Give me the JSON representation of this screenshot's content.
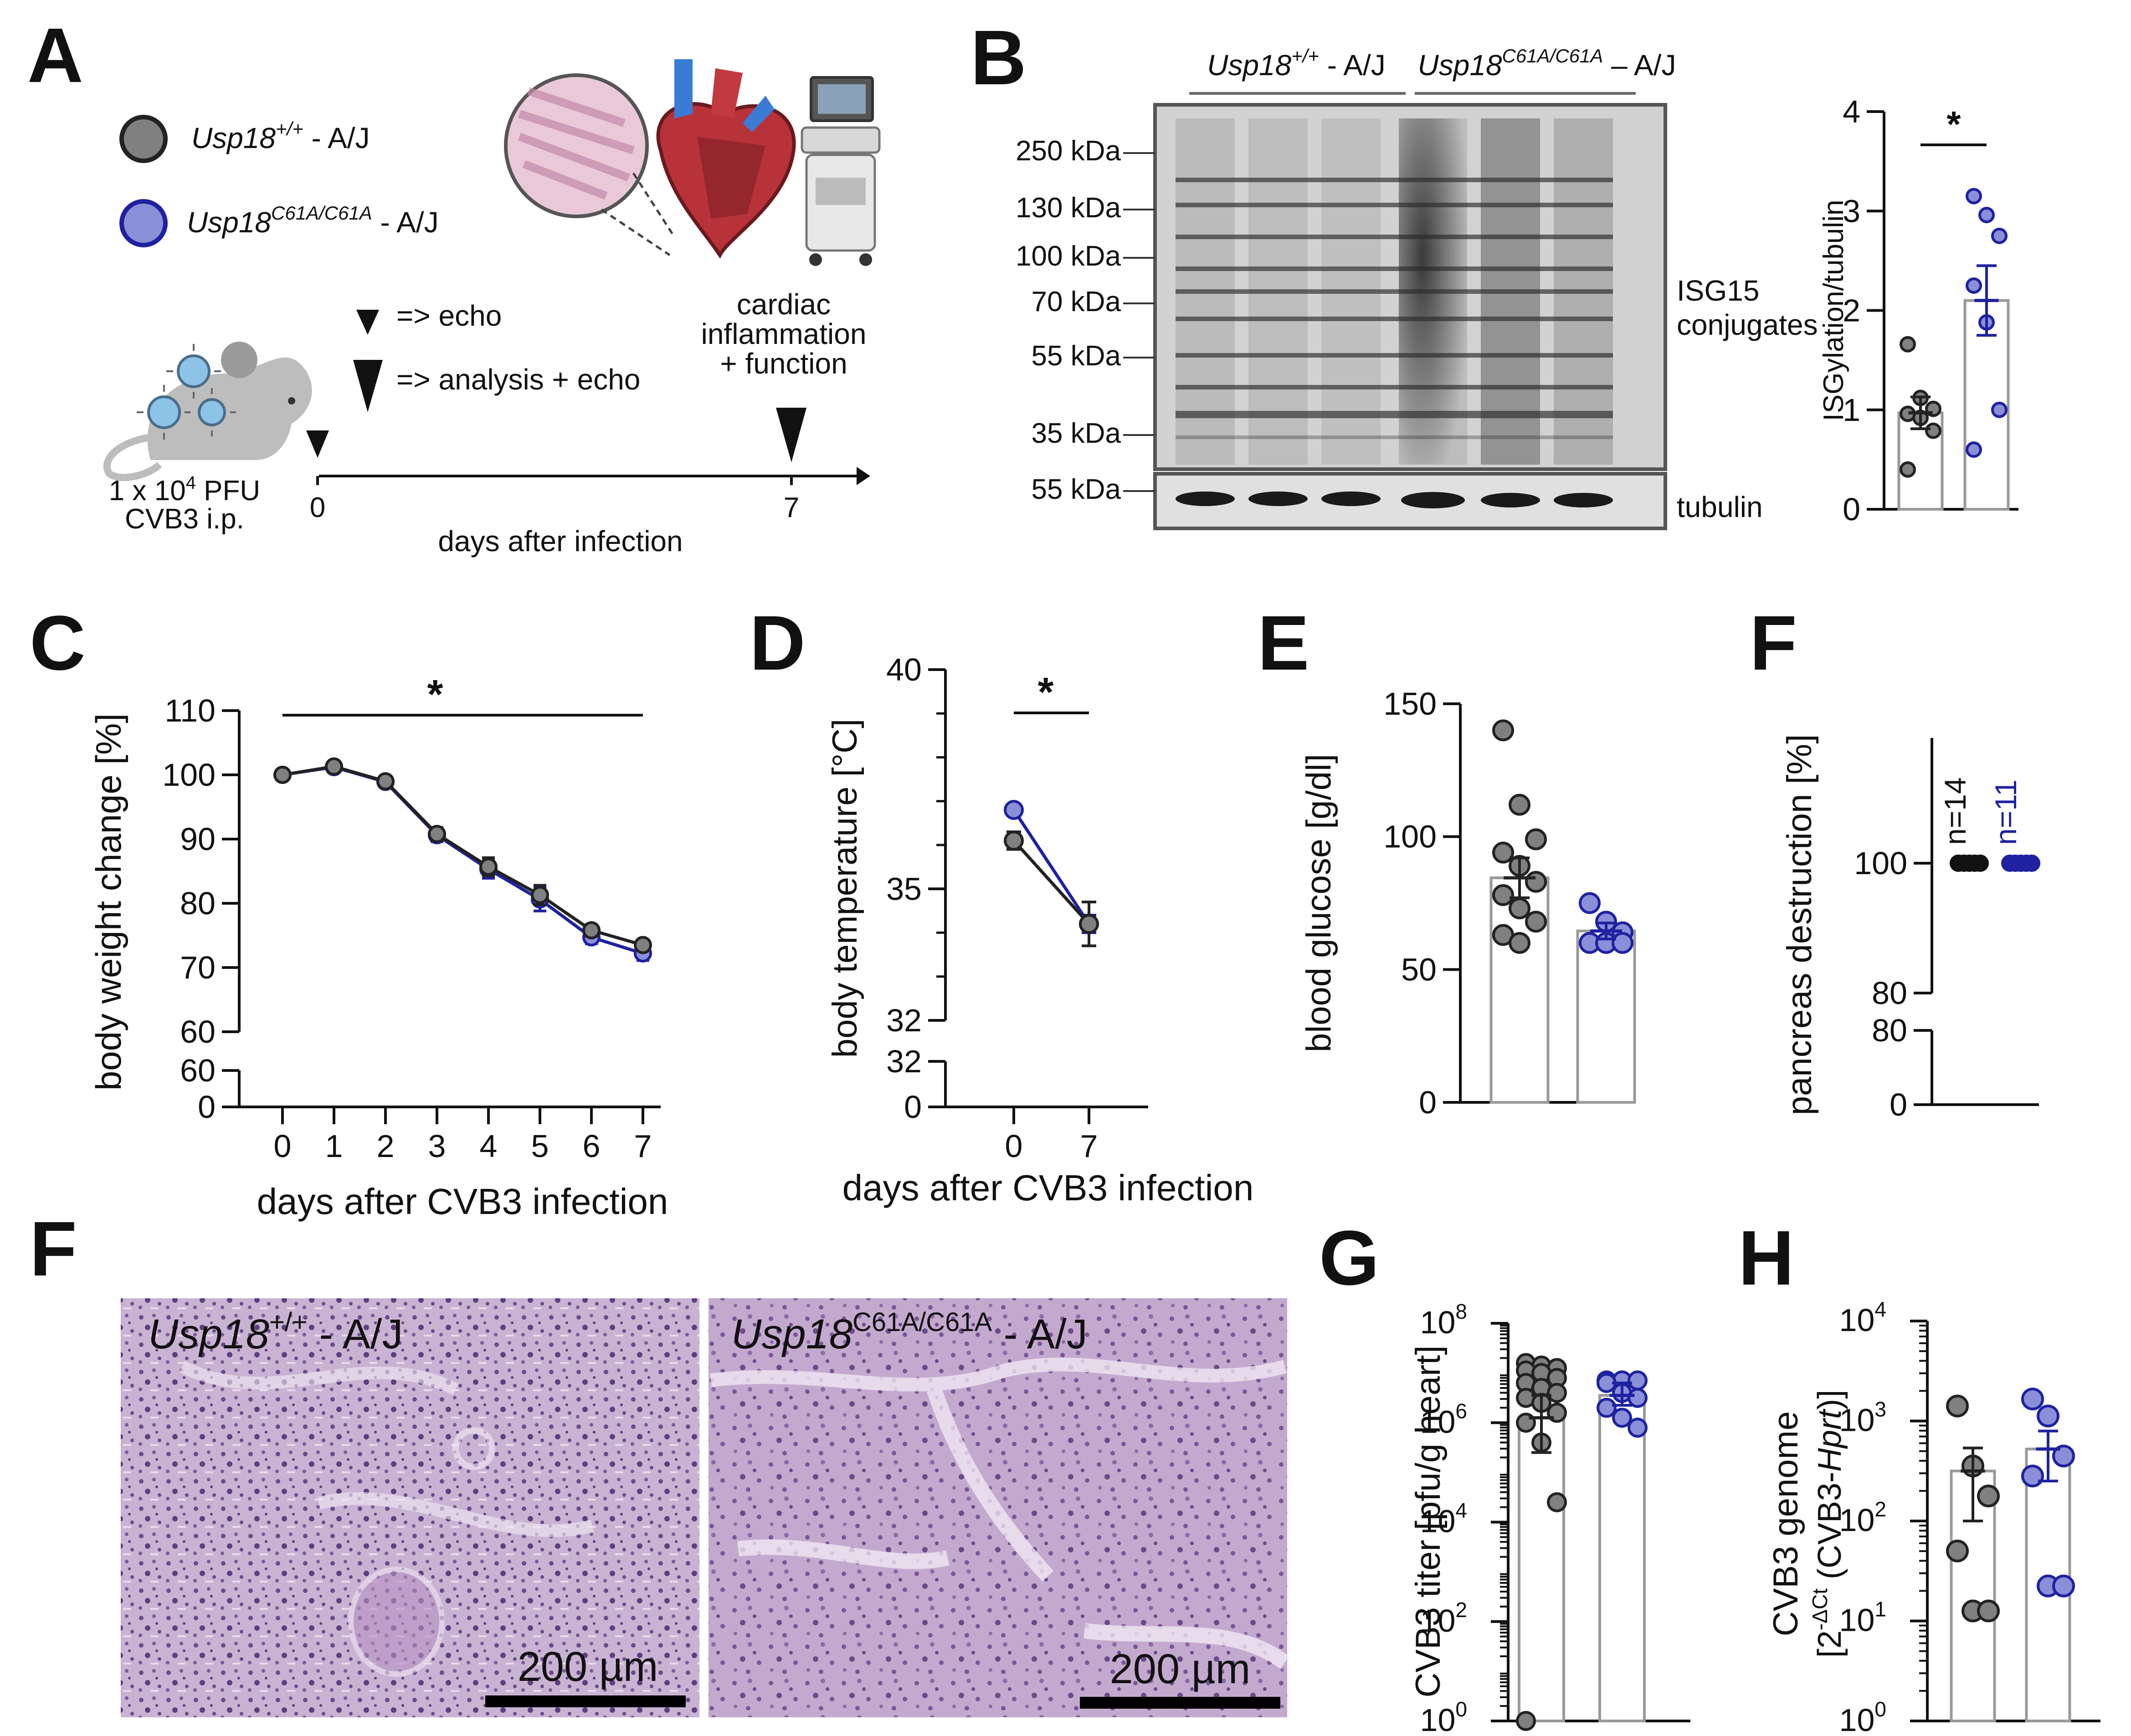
{
  "figure": {
    "colors": {
      "wt": "#808080",
      "mut": "#8a8fd8",
      "mut_line": "#1e22a0",
      "he_bg": "#cfbcd6"
    },
    "panel_labels": {
      "a": "A",
      "b": "B",
      "c": "C",
      "d": "D",
      "e": "E",
      "f1": "F",
      "f2": "F",
      "g": "G",
      "h": "H"
    },
    "legend": {
      "wt": {
        "name": "Usp18",
        "sup": "+/+",
        "suffix": " - A/J"
      },
      "mut": {
        "name": "Usp18",
        "sup": "C61A/C61A",
        "suffix": " - A/J"
      }
    },
    "schematic": {
      "echo_small": "=> echo",
      "echo_large": "=> analysis + echo",
      "dose_line1": "1 x 10",
      "dose_sup": "4",
      "dose_unit": " PFU",
      "dose_line2": "CVB3 i.p.",
      "day_start": "0",
      "day_end": "7",
      "axis_label": "days after infection",
      "readout": [
        "cardiac",
        "inflammation",
        "+ function"
      ]
    },
    "blot": {
      "group_wt": {
        "name": "Usp18",
        "sup": "+/+",
        "suffix": " - A/J"
      },
      "group_mut": {
        "name": "Usp18",
        "sup": "C61A/C61A",
        "suffix": " – A/J"
      },
      "markers": [
        "250 kDa",
        "130 kDa",
        "100 kDa",
        "70 kDa",
        "55 kDa",
        "35 kDa"
      ],
      "tubulin_marker": "55 kDa",
      "label_isg15": [
        "ISG15",
        "conjugates"
      ],
      "label_tubulin": "tubulin"
    },
    "he": {
      "left": {
        "name": "Usp18",
        "sup": "+/+",
        "suffix": " - A/J",
        "scale": "200 µm"
      },
      "right": {
        "name": "Usp18",
        "sup": "C61A/C61A",
        "suffix": " - A/J",
        "scale": "200 µm"
      }
    }
  },
  "chart_data": [
    {
      "id": "B_right",
      "type": "bar",
      "ylabel": "ISGylation/tubulin",
      "ylim": [
        0,
        4
      ],
      "yticks": [
        "0",
        "1",
        "2",
        "3",
        "4"
      ],
      "significance": "*",
      "series": [
        {
          "name": "Usp18+/+ - A/J",
          "mean": 0.97,
          "sem": 0.16,
          "points": [
            1.66,
            1.12,
            1.01,
            0.96,
            0.92,
            0.79,
            0.4
          ]
        },
        {
          "name": "Usp18C61A/C61A - A/J",
          "mean": 2.1,
          "sem": 0.35,
          "points": [
            3.15,
            2.96,
            2.75,
            2.25,
            1.88,
            1.0,
            0.6
          ]
        }
      ]
    },
    {
      "id": "C",
      "type": "line",
      "xlabel": "days after CVB3 infection",
      "ylabel": "body weight change [%]",
      "x": [
        0,
        1,
        2,
        3,
        4,
        5,
        6,
        7
      ],
      "yticks_upper": [
        "60",
        "70",
        "80",
        "90",
        "100",
        "110"
      ],
      "yticks_lower": [
        "0",
        "60"
      ],
      "ylim_upper": [
        60,
        110
      ],
      "significance": "*",
      "series": [
        {
          "name": "Usp18+/+ - A/J",
          "values": [
            100,
            101.3,
            99,
            90.8,
            85.7,
            81.3,
            75.8,
            73.5
          ],
          "sem": [
            0.3,
            0.5,
            0.6,
            1.0,
            1.4,
            1.5,
            0.9,
            0.8
          ]
        },
        {
          "name": "Usp18C61A/C61A - A/J",
          "values": [
            100,
            101.2,
            98.9,
            90.6,
            85.3,
            80.6,
            74.7,
            72.2
          ],
          "sem": [
            0.3,
            0.5,
            0.6,
            1.0,
            1.4,
            1.8,
            1.0,
            1.1
          ]
        }
      ]
    },
    {
      "id": "D",
      "type": "line",
      "xlabel": "days after CVB3 infection",
      "ylabel": "body temperature [°C]",
      "x": [
        0,
        7
      ],
      "yticks_upper": [
        "32",
        "35",
        "40"
      ],
      "yticks_lower": [
        "0",
        "32"
      ],
      "ylim_upper": [
        32,
        40
      ],
      "significance": "*",
      "series": [
        {
          "name": "Usp18+/+ - A/J",
          "values": [
            36.1,
            34.2
          ],
          "sem": [
            0.2,
            0.5
          ]
        },
        {
          "name": "Usp18C61A/C61A - A/J",
          "values": [
            36.8,
            34.2
          ],
          "sem": [
            0.1,
            0.2
          ]
        }
      ]
    },
    {
      "id": "E",
      "type": "bar",
      "ylabel": "blood glucose [g/dl]",
      "ylim": [
        0,
        150
      ],
      "yticks": [
        "0",
        "50",
        "100",
        "150"
      ],
      "series": [
        {
          "name": "Usp18+/+ - A/J",
          "mean": 84.5,
          "sem": 7.5,
          "points": [
            140,
            112,
            99,
            94,
            89,
            83,
            78,
            73,
            68,
            63,
            60
          ]
        },
        {
          "name": "Usp18C61A/C61A - A/J",
          "mean": 64.5,
          "sem": 3,
          "points": [
            75,
            68,
            64,
            60,
            60,
            60
          ]
        }
      ]
    },
    {
      "id": "F",
      "type": "scatter",
      "ylabel": "pancreas destruction [%]",
      "yticks_upper": [
        "80",
        "100"
      ],
      "yticks_lower": [
        "0",
        "80"
      ],
      "series": [
        {
          "name": "Usp18+/+ - A/J",
          "value": 100,
          "n_label": "n=14"
        },
        {
          "name": "Usp18C61A/C61A - A/J",
          "value": 100,
          "n_label": "n=11"
        }
      ]
    },
    {
      "id": "G",
      "type": "bar",
      "ylabel": "CVB3 titer [pfu/g heart]",
      "log_range": [
        0,
        8
      ],
      "yticks": [
        {
          "base": "10",
          "exp": "0"
        },
        {
          "base": "10",
          "exp": "2"
        },
        {
          "base": "10",
          "exp": "4"
        },
        {
          "base": "10",
          "exp": "6"
        },
        {
          "base": "10",
          "exp": "8"
        }
      ],
      "series": [
        {
          "name": "Usp18+/+ - A/J",
          "mean_log": 6.1,
          "sem_low_log": 5.4,
          "sem_high_log": 6.55,
          "points_log": [
            7.2,
            7.15,
            7.1,
            7.05,
            7.0,
            6.9,
            6.8,
            6.7,
            6.6,
            6.5,
            6.4,
            6.2,
            6.0,
            5.6,
            4.4,
            0
          ]
        },
        {
          "name": "Usp18C61A/C61A - A/J",
          "mean_log": 6.55,
          "sem_low_log": 6.35,
          "sem_high_log": 6.8,
          "points_log": [
            6.85,
            6.85,
            6.85,
            6.8,
            6.6,
            6.5,
            6.3,
            6.1,
            5.9
          ]
        }
      ]
    },
    {
      "id": "H",
      "type": "bar",
      "ylabel_line1": "CVB3 genome",
      "ylabel_line2_pre": "[2",
      "ylabel_line2_sup": "-ΔCt",
      "ylabel_line2_mid": " (CVB3-",
      "ylabel_line2_it": "Hprt",
      "ylabel_line2_end": ")]",
      "log_range": [
        0,
        4
      ],
      "yticks": [
        {
          "base": "10",
          "exp": "0"
        },
        {
          "base": "10",
          "exp": "1"
        },
        {
          "base": "10",
          "exp": "2"
        },
        {
          "base": "10",
          "exp": "3"
        },
        {
          "base": "10",
          "exp": "4"
        }
      ],
      "series": [
        {
          "name": "Usp18+/+ - A/J",
          "mean_log": 2.5,
          "sem_low_log": 2.0,
          "sem_high_log": 2.73,
          "points_log": [
            3.15,
            2.55,
            2.25,
            1.7,
            1.1,
            1.1
          ]
        },
        {
          "name": "Usp18C61A/C61A - A/J",
          "mean_log": 2.72,
          "sem_low_log": 2.4,
          "sem_high_log": 2.9,
          "points_log": [
            3.22,
            3.05,
            2.65,
            2.45,
            1.35,
            1.35
          ]
        }
      ]
    }
  ]
}
